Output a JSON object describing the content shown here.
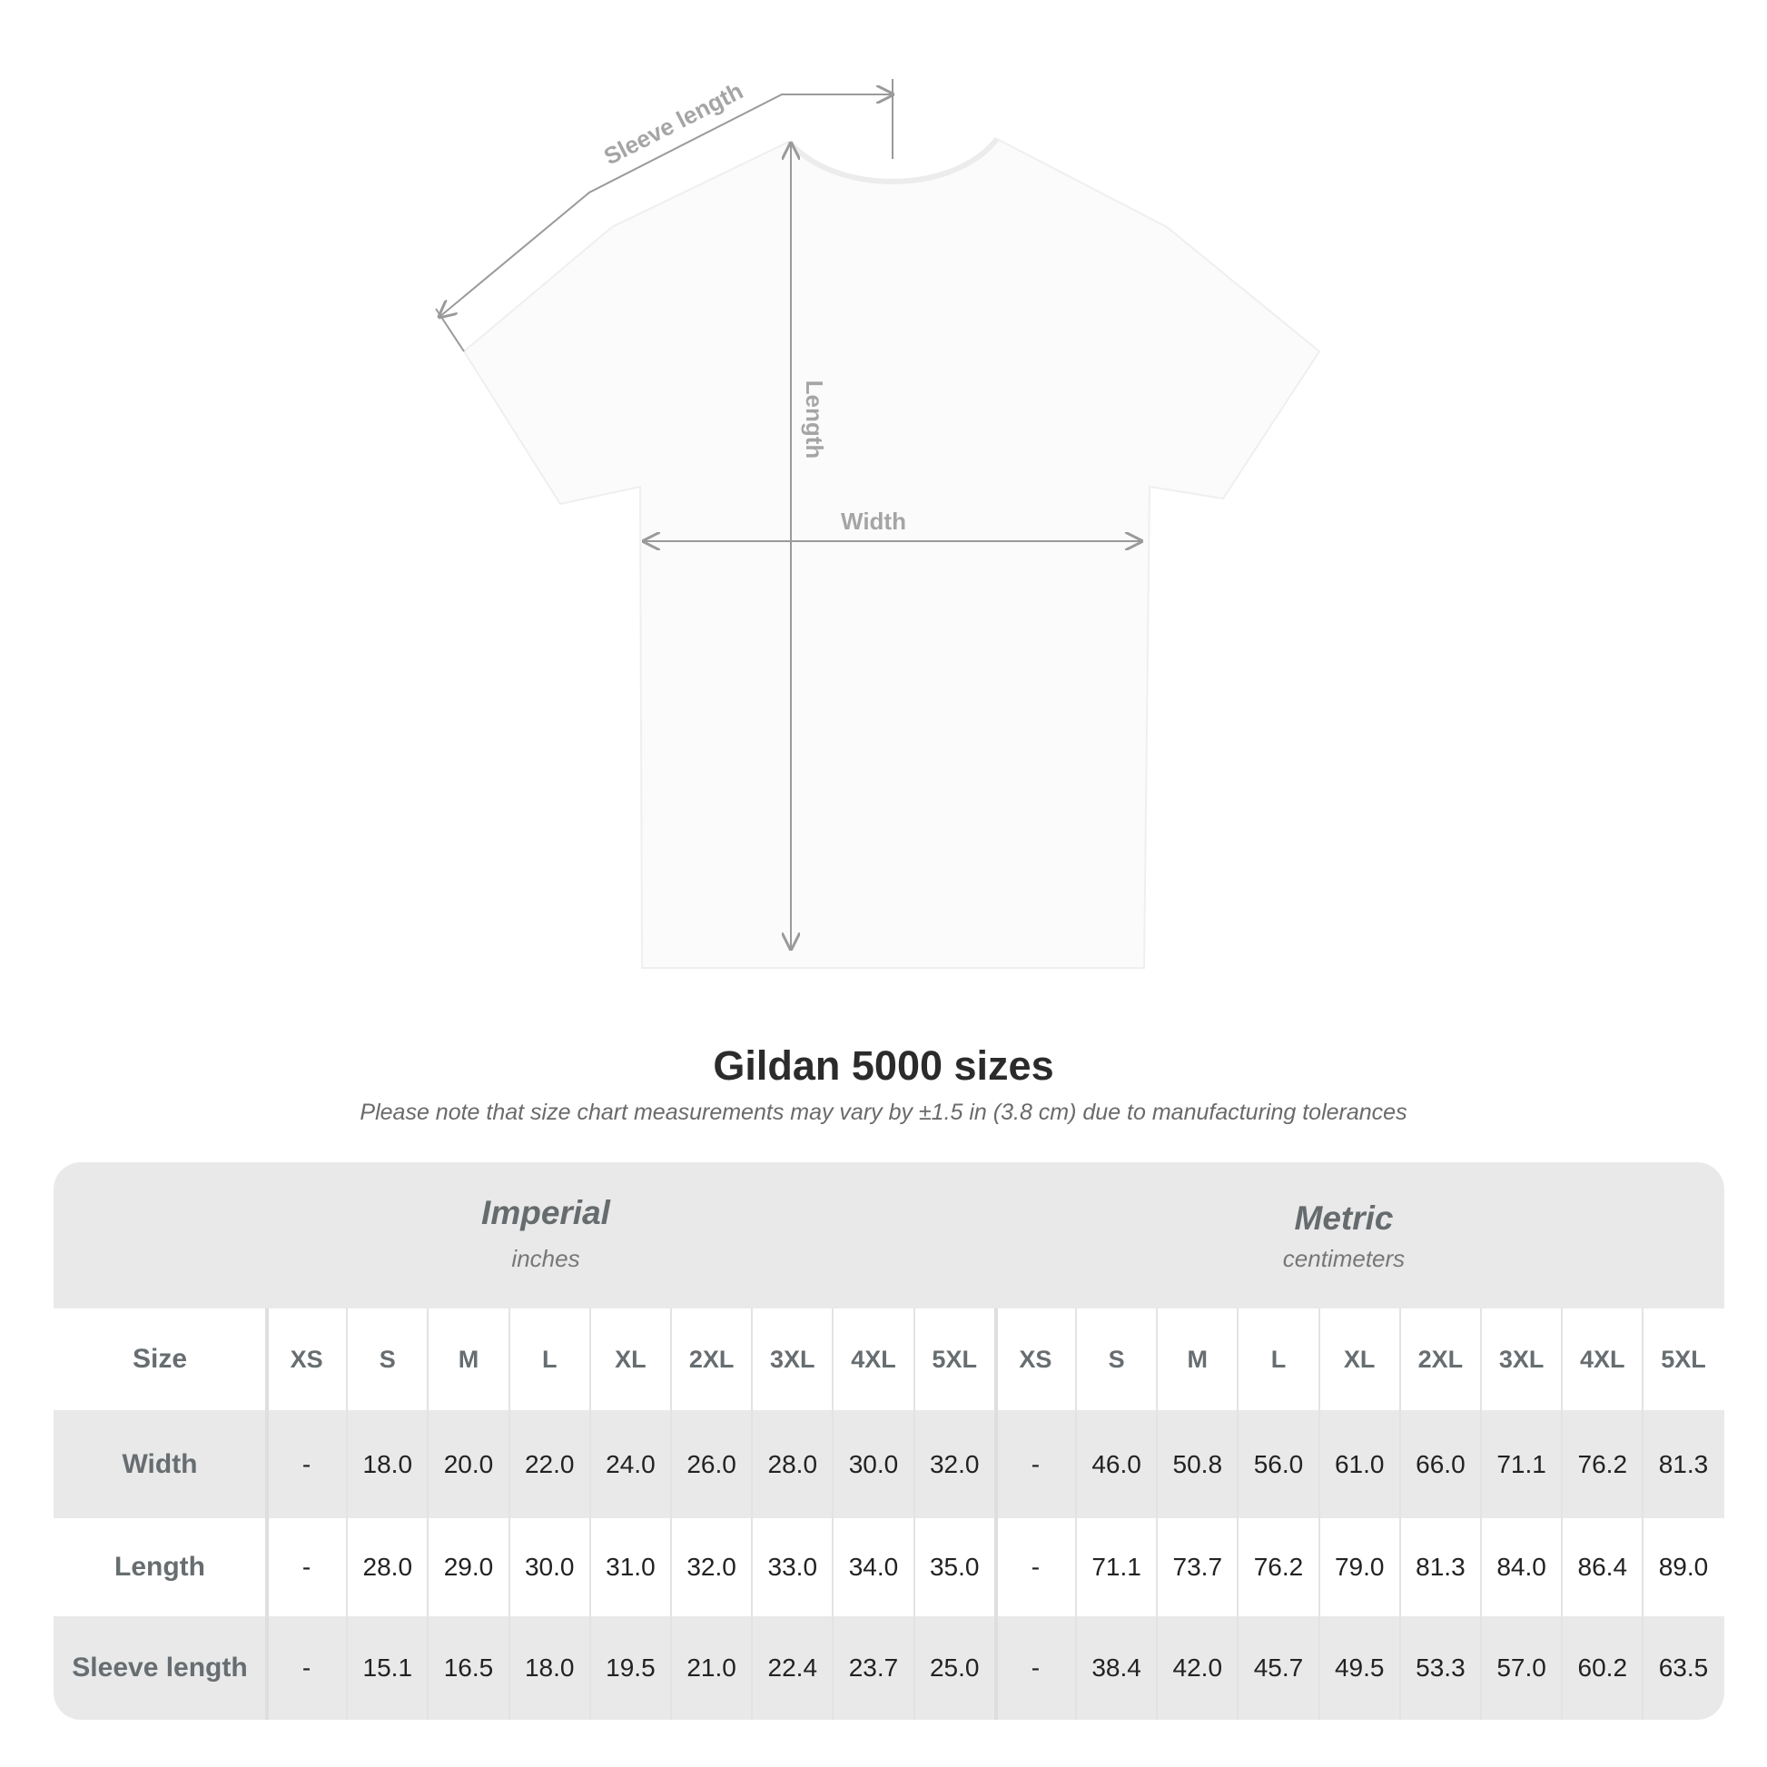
{
  "diagram": {
    "labels": {
      "sleeve": "Sleeve length",
      "length": "Length",
      "width": "Width"
    }
  },
  "title": "Gildan 5000 sizes",
  "note": "Please note that size chart measurements may vary by ±1.5 in (3.8 cm) due to manufacturing tolerances",
  "table": {
    "imperial": {
      "name": "Imperial",
      "unit": "inches"
    },
    "metric": {
      "name": "Metric",
      "unit": "centimeters"
    },
    "size_label": "Size",
    "sizes": [
      "XS",
      "S",
      "M",
      "L",
      "XL",
      "2XL",
      "3XL",
      "4XL",
      "5XL"
    ],
    "rows": [
      {
        "label": "Width",
        "imperial": [
          "-",
          "18.0",
          "20.0",
          "22.0",
          "24.0",
          "26.0",
          "28.0",
          "30.0",
          "32.0"
        ],
        "metric": [
          "-",
          "46.0",
          "50.8",
          "56.0",
          "61.0",
          "66.0",
          "71.1",
          "76.2",
          "81.3"
        ]
      },
      {
        "label": "Length",
        "imperial": [
          "-",
          "28.0",
          "29.0",
          "30.0",
          "31.0",
          "32.0",
          "33.0",
          "34.0",
          "35.0"
        ],
        "metric": [
          "-",
          "71.1",
          "73.7",
          "76.2",
          "79.0",
          "81.3",
          "84.0",
          "86.4",
          "89.0"
        ]
      },
      {
        "label": "Sleeve length",
        "imperial": [
          "-",
          "15.1",
          "16.5",
          "18.0",
          "19.5",
          "21.0",
          "22.4",
          "23.7",
          "25.0"
        ],
        "metric": [
          "-",
          "38.4",
          "42.0",
          "45.7",
          "49.5",
          "53.3",
          "57.0",
          "60.2",
          "63.5"
        ]
      }
    ]
  },
  "colors": {
    "header_band": "#e9e9e9",
    "label_text": "#676d70",
    "measure_line": "#9a9a9a"
  }
}
